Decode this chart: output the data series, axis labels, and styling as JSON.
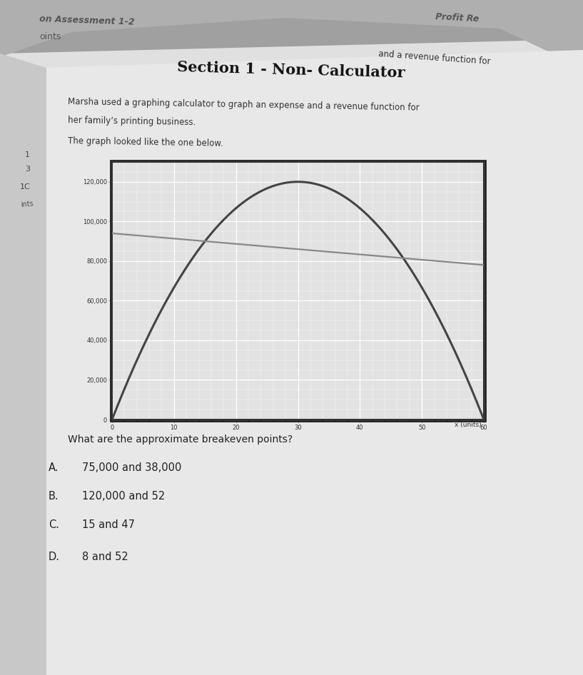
{
  "title": "Section 1 - Non- Calculator",
  "question_line1": "Marsha used a graphing calculator to graph an expense and a revenue function for",
  "question_line2": "her family’s printing business.",
  "graph_intro": "The graph looked like the one below.",
  "question": "What are the approximate breakeven points?",
  "answers": [
    {
      "label": "A.",
      "text": "75,000 and 38,000"
    },
    {
      "label": "B.",
      "text": "120,000 and 52"
    },
    {
      "label": "C.",
      "text": "15 and 47"
    },
    {
      "label": "D.",
      "text": "8 and 52"
    }
  ],
  "header_left": "on Assessment 1-2",
  "header_right": "Profit Re",
  "subheader_left": "oints",
  "left_labels": [
    "1",
    "3",
    "1C",
    "ints"
  ],
  "graph": {
    "xlim": [
      0,
      60
    ],
    "ylim": [
      0,
      130000
    ],
    "xticks": [
      0,
      10,
      20,
      30,
      40,
      50,
      60
    ],
    "yticks": [
      0,
      20000,
      40000,
      60000,
      80000,
      100000,
      120000
    ],
    "xlabel": "x (units)",
    "revenue_color": "#444444",
    "expense_color": "#888888",
    "bg_color": "#e2e2e2",
    "grid_color": "#ffffff",
    "breakeven_x1": 15,
    "breakeven_x2": 47,
    "peak_x": 30,
    "peak_y": 120000,
    "parabola_roots": [
      0,
      60
    ]
  },
  "outer_bg": "#a0a0a0",
  "top_bg": "#b8b8b8",
  "paper_bg": "#e8e8e8",
  "paper_light": "#f0f0f0"
}
